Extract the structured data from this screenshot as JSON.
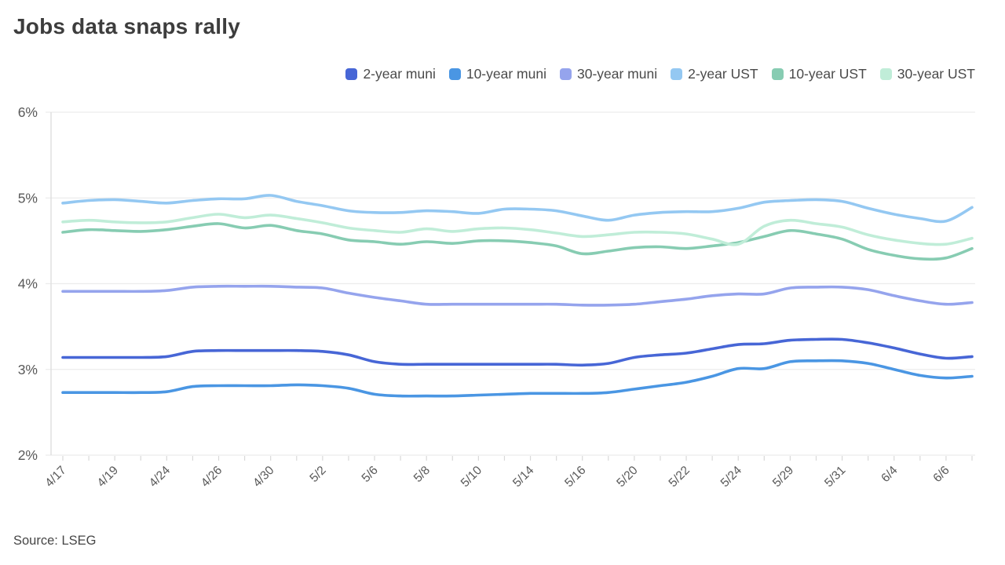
{
  "title": "Jobs data snaps rally",
  "source": "Source: LSEG",
  "colors": {
    "grid": "#ececec",
    "axis_line": "#dcdcdc",
    "tick": "#d9d9d9",
    "axis_text": "#595959",
    "title_text": "#3d3d3d",
    "legend_text": "#4a4a4a"
  },
  "chart_data": {
    "type": "line",
    "title": "Jobs data snaps rally",
    "xlabel": "",
    "ylabel": "",
    "ylim": [
      2,
      6
    ],
    "grid": "horizontal-only",
    "legend_position": "top-right",
    "y_ticks": [
      {
        "value": 6,
        "label": "6%"
      },
      {
        "value": 5,
        "label": "5%"
      },
      {
        "value": 4,
        "label": "4%"
      },
      {
        "value": 3,
        "label": "3%"
      },
      {
        "value": 2,
        "label": "2%"
      }
    ],
    "x": [
      "4/17",
      "4/18",
      "4/19",
      "4/22",
      "4/24",
      "4/25",
      "4/26",
      "4/29",
      "4/30",
      "5/1",
      "5/2",
      "5/3",
      "5/6",
      "5/7",
      "5/8",
      "5/9",
      "5/10",
      "5/13",
      "5/14",
      "5/15",
      "5/16",
      "5/17",
      "5/20",
      "5/21",
      "5/22",
      "5/23",
      "5/24",
      "5/28",
      "5/29",
      "5/30",
      "5/31",
      "6/3",
      "6/4",
      "6/5",
      "6/6",
      "6/7"
    ],
    "x_label_every": 2,
    "x_labels_shown": [
      "4/17",
      "4/19",
      "4/24",
      "4/26",
      "4/30",
      "5/2",
      "5/6",
      "5/8",
      "5/10",
      "5/14",
      "5/16",
      "5/20",
      "5/22",
      "5/24",
      "5/29",
      "5/31",
      "6/4",
      "6/6"
    ],
    "series": [
      {
        "name": "2-year muni",
        "color": "#4766d6",
        "values": [
          3.14,
          3.14,
          3.14,
          3.14,
          3.15,
          3.21,
          3.22,
          3.22,
          3.22,
          3.22,
          3.21,
          3.17,
          3.09,
          3.06,
          3.06,
          3.06,
          3.06,
          3.06,
          3.06,
          3.06,
          3.05,
          3.07,
          3.14,
          3.17,
          3.19,
          3.24,
          3.29,
          3.3,
          3.34,
          3.35,
          3.35,
          3.31,
          3.25,
          3.18,
          3.13,
          3.15
        ]
      },
      {
        "name": "10-year muni",
        "color": "#4a96e3",
        "values": [
          2.73,
          2.73,
          2.73,
          2.73,
          2.74,
          2.8,
          2.81,
          2.81,
          2.81,
          2.82,
          2.81,
          2.78,
          2.71,
          2.69,
          2.69,
          2.69,
          2.7,
          2.71,
          2.72,
          2.72,
          2.72,
          2.73,
          2.77,
          2.81,
          2.85,
          2.92,
          3.01,
          3.01,
          3.09,
          3.1,
          3.1,
          3.07,
          3.0,
          2.93,
          2.9,
          2.92
        ]
      },
      {
        "name": "30-year muni",
        "color": "#95a4ed",
        "values": [
          3.91,
          3.91,
          3.91,
          3.91,
          3.92,
          3.96,
          3.97,
          3.97,
          3.97,
          3.96,
          3.95,
          3.89,
          3.84,
          3.8,
          3.76,
          3.76,
          3.76,
          3.76,
          3.76,
          3.76,
          3.75,
          3.75,
          3.76,
          3.79,
          3.82,
          3.86,
          3.88,
          3.88,
          3.95,
          3.96,
          3.96,
          3.93,
          3.86,
          3.8,
          3.76,
          3.78
        ]
      },
      {
        "name": "2-year UST",
        "color": "#94c8f2",
        "values": [
          4.94,
          4.97,
          4.98,
          4.96,
          4.94,
          4.97,
          4.99,
          4.99,
          5.03,
          4.96,
          4.91,
          4.85,
          4.83,
          4.83,
          4.85,
          4.84,
          4.82,
          4.87,
          4.87,
          4.85,
          4.79,
          4.74,
          4.8,
          4.83,
          4.84,
          4.84,
          4.88,
          4.95,
          4.97,
          4.98,
          4.96,
          4.88,
          4.81,
          4.76,
          4.73,
          4.89
        ]
      },
      {
        "name": "10-year UST",
        "color": "#87ccb2",
        "values": [
          4.6,
          4.63,
          4.62,
          4.61,
          4.63,
          4.67,
          4.7,
          4.65,
          4.68,
          4.62,
          4.58,
          4.51,
          4.49,
          4.46,
          4.49,
          4.47,
          4.5,
          4.5,
          4.48,
          4.44,
          4.35,
          4.38,
          4.42,
          4.43,
          4.41,
          4.44,
          4.48,
          4.55,
          4.62,
          4.58,
          4.52,
          4.4,
          4.33,
          4.29,
          4.3,
          4.41
        ]
      },
      {
        "name": "30-year UST",
        "color": "#c0edd8",
        "values": [
          4.72,
          4.74,
          4.72,
          4.71,
          4.72,
          4.77,
          4.81,
          4.77,
          4.8,
          4.76,
          4.71,
          4.65,
          4.62,
          4.6,
          4.64,
          4.61,
          4.64,
          4.65,
          4.63,
          4.59,
          4.55,
          4.57,
          4.6,
          4.6,
          4.58,
          4.52,
          4.46,
          4.67,
          4.74,
          4.7,
          4.66,
          4.57,
          4.51,
          4.47,
          4.46,
          4.53
        ]
      }
    ]
  }
}
